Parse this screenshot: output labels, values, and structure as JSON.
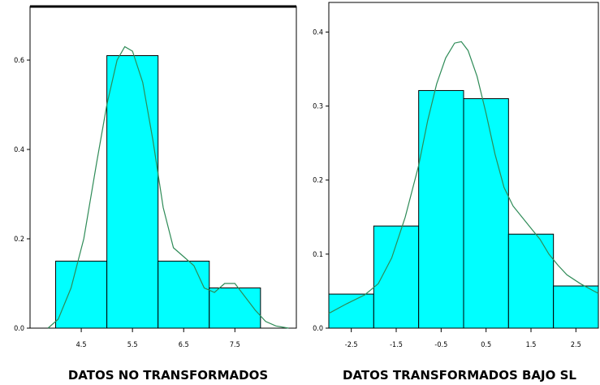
{
  "chart_data": [
    {
      "type": "bar",
      "subtype": "histogram-with-density",
      "xlabel": "DATOS NO TRANSFORMADOS",
      "ylabel": "",
      "x_ticks": [
        "4.5",
        "5.5",
        "6.5",
        "7.5"
      ],
      "y_ticks": [
        "0.0",
        "0.2",
        "0.4",
        "0.6"
      ],
      "xlim": [
        3.5,
        8.7
      ],
      "ylim": [
        0,
        0.72
      ],
      "bins": [
        {
          "x0": 4.0,
          "x1": 5.0,
          "value": 0.15
        },
        {
          "x0": 5.0,
          "x1": 6.0,
          "value": 0.61
        },
        {
          "x0": 6.0,
          "x1": 7.0,
          "value": 0.15
        },
        {
          "x0": 7.0,
          "x1": 8.0,
          "value": 0.09
        }
      ],
      "density_curve": [
        [
          3.85,
          0.0
        ],
        [
          4.05,
          0.02
        ],
        [
          4.3,
          0.09
        ],
        [
          4.55,
          0.2
        ],
        [
          4.8,
          0.37
        ],
        [
          5.0,
          0.5
        ],
        [
          5.2,
          0.6
        ],
        [
          5.35,
          0.63
        ],
        [
          5.5,
          0.62
        ],
        [
          5.7,
          0.55
        ],
        [
          5.9,
          0.42
        ],
        [
          6.1,
          0.27
        ],
        [
          6.3,
          0.18
        ],
        [
          6.5,
          0.16
        ],
        [
          6.7,
          0.14
        ],
        [
          6.9,
          0.09
        ],
        [
          7.1,
          0.08
        ],
        [
          7.3,
          0.1
        ],
        [
          7.5,
          0.1
        ],
        [
          7.7,
          0.07
        ],
        [
          7.9,
          0.04
        ],
        [
          8.1,
          0.015
        ],
        [
          8.3,
          0.005
        ],
        [
          8.55,
          0.0
        ]
      ],
      "bar_color": "#00ffff",
      "curve_color": "#2e8b57",
      "grid": false,
      "legend": "none"
    },
    {
      "type": "bar",
      "subtype": "histogram-with-density",
      "xlabel": "DATOS TRANSFORMADOS BAJO SL",
      "ylabel": "",
      "x_ticks": [
        "-2.5",
        "-1.5",
        "-0.5",
        "0.5",
        "1.5",
        "2.5"
      ],
      "y_ticks": [
        "0.0",
        "0.1",
        "0.2",
        "0.3",
        "0.4"
      ],
      "xlim": [
        -3.0,
        3.0
      ],
      "ylim": [
        0,
        0.44
      ],
      "bins": [
        {
          "x0": -3.0,
          "x1": -2.0,
          "value": 0.046
        },
        {
          "x0": -2.0,
          "x1": -1.0,
          "value": 0.138
        },
        {
          "x0": -1.0,
          "x1": 0.0,
          "value": 0.321
        },
        {
          "x0": 0.0,
          "x1": 1.0,
          "value": 0.31
        },
        {
          "x0": 1.0,
          "x1": 2.0,
          "value": 0.127
        },
        {
          "x0": 2.0,
          "x1": 3.0,
          "value": 0.057
        }
      ],
      "density_curve": [
        [
          -3.0,
          0.02
        ],
        [
          -2.6,
          0.033
        ],
        [
          -2.2,
          0.045
        ],
        [
          -1.9,
          0.06
        ],
        [
          -1.6,
          0.095
        ],
        [
          -1.3,
          0.15
        ],
        [
          -1.0,
          0.22
        ],
        [
          -0.8,
          0.28
        ],
        [
          -0.6,
          0.33
        ],
        [
          -0.4,
          0.365
        ],
        [
          -0.2,
          0.385
        ],
        [
          -0.05,
          0.387
        ],
        [
          0.1,
          0.375
        ],
        [
          0.3,
          0.34
        ],
        [
          0.5,
          0.29
        ],
        [
          0.7,
          0.235
        ],
        [
          0.9,
          0.19
        ],
        [
          1.1,
          0.165
        ],
        [
          1.3,
          0.15
        ],
        [
          1.5,
          0.135
        ],
        [
          1.7,
          0.12
        ],
        [
          1.9,
          0.1
        ],
        [
          2.1,
          0.085
        ],
        [
          2.3,
          0.072
        ],
        [
          2.6,
          0.06
        ],
        [
          2.9,
          0.05
        ],
        [
          3.0,
          0.047
        ]
      ],
      "bar_color": "#00ffff",
      "curve_color": "#2e8b57",
      "grid": false,
      "legend": "none"
    }
  ]
}
